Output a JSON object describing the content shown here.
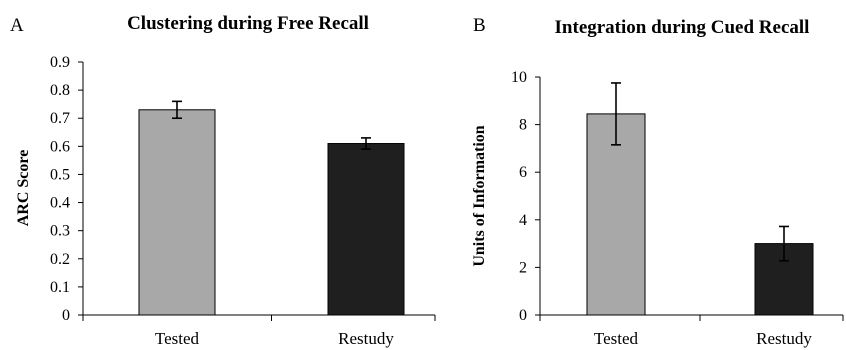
{
  "chart_data": [
    {
      "type": "bar",
      "panel": "A",
      "title": "Clustering during Free Recall",
      "ylabel": "ARC Score",
      "xlabel": "",
      "categories": [
        "Tested",
        "Restudy"
      ],
      "values": [
        0.73,
        0.61
      ],
      "errors": [
        0.03,
        0.02
      ],
      "ylim": [
        0,
        0.9
      ],
      "yticks": [
        "0",
        "0.1",
        "0.2",
        "0.3",
        "0.4",
        "0.5",
        "0.6",
        "0.7",
        "0.8",
        "0.9"
      ],
      "bar_colors": [
        "#a8a8a8",
        "#1f1f1f"
      ],
      "grid": false
    },
    {
      "type": "bar",
      "panel": "B",
      "title": "Integration during Cued Recall",
      "ylabel": "Units of Information",
      "xlabel": "",
      "categories": [
        "Tested",
        "Restudy"
      ],
      "values": [
        8.45,
        3.0
      ],
      "errors": [
        1.3,
        0.72
      ],
      "ylim": [
        0,
        10
      ],
      "yticks": [
        "0",
        "2",
        "4",
        "6",
        "8",
        "10"
      ],
      "bar_colors": [
        "#a8a8a8",
        "#1f1f1f"
      ],
      "grid": false
    }
  ]
}
